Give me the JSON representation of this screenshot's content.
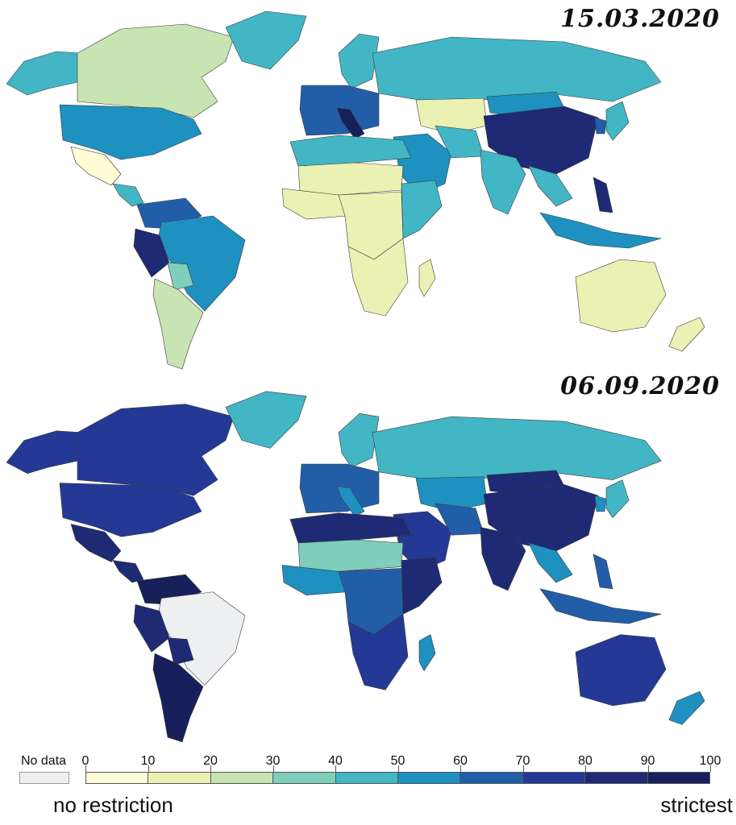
{
  "maps": [
    {
      "date": "15.03.2020",
      "regions": {
        "canada": 20,
        "alaska": 40,
        "greenland": 40,
        "usa": 50,
        "mexico": 5,
        "central_america": 40,
        "colombia_venezuela": 60,
        "brazil": 50,
        "peru": 80,
        "bolivia": 30,
        "argentina_chile": 25,
        "europe_west": 60,
        "italy": 90,
        "scandinavia": 40,
        "russia": 40,
        "kazakhstan": 10,
        "china": 80,
        "mongolia": 55,
        "india": 40,
        "middle_east": 50,
        "iran": 40,
        "north_africa": 40,
        "sahara": 10,
        "west_africa": 10,
        "central_africa": 10,
        "east_africa": 40,
        "southern_africa": 10,
        "madagascar": 10,
        "se_asia": 40,
        "indonesia": 50,
        "philippines": 80,
        "japan": 40,
        "korea": 60,
        "australia": 10,
        "new_zealand": 10
      }
    },
    {
      "date": "06.09.2020",
      "regions": {
        "canada": 70,
        "alaska": 70,
        "greenland": 40,
        "usa": 70,
        "mexico": 80,
        "central_america": 80,
        "colombia_venezuela": 90,
        "brazil": null,
        "peru": 80,
        "bolivia": 80,
        "argentina_chile": 95,
        "europe_west": 60,
        "italy": 50,
        "scandinavia": 40,
        "russia": 40,
        "kazakhstan": 50,
        "china": 80,
        "mongolia": 80,
        "india": 85,
        "middle_east": 70,
        "iran": 60,
        "north_africa": 80,
        "sahara": 30,
        "west_africa": 50,
        "central_africa": 60,
        "east_africa": 80,
        "southern_africa": 70,
        "madagascar": 50,
        "se_asia": 50,
        "indonesia": 60,
        "philippines": 60,
        "japan": 40,
        "korea": 50,
        "australia": 75,
        "new_zealand": 50
      }
    }
  ],
  "legend": {
    "no_data_label": "No data",
    "ticks": [
      "0",
      "10",
      "20",
      "30",
      "40",
      "50",
      "60",
      "70",
      "80",
      "90",
      "100"
    ],
    "colors": [
      "#fffdd6",
      "#eaf1b3",
      "#c8e4b2",
      "#7fcdbb",
      "#42b6c5",
      "#1e91c0",
      "#225ea8",
      "#243996",
      "#1f2a74",
      "#17205a"
    ],
    "no_data_color": "#eeeff1",
    "low_caption": "no restriction",
    "high_caption": "strictest"
  }
}
